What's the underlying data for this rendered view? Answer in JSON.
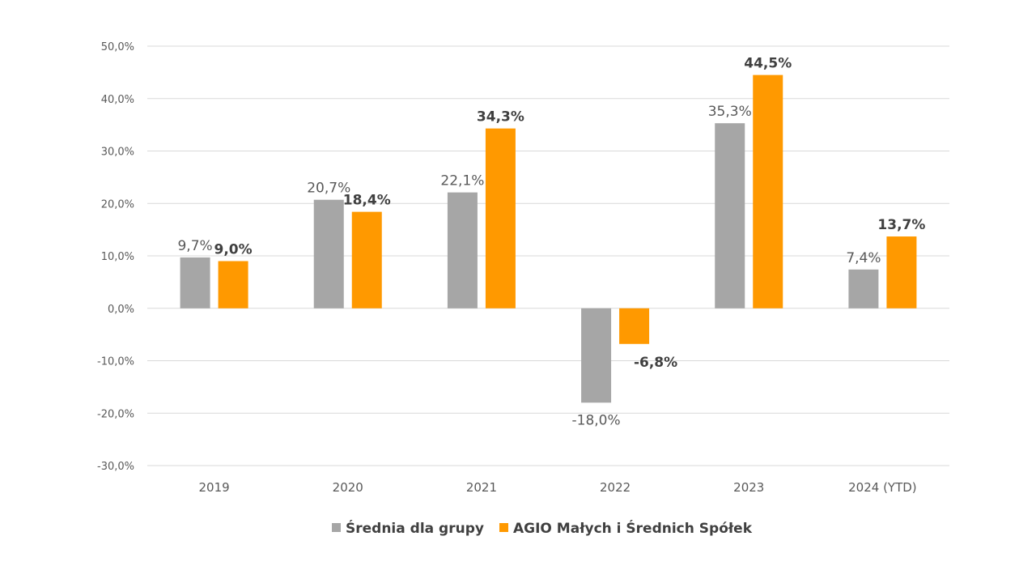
{
  "chart_data": {
    "type": "bar",
    "categories": [
      "2019",
      "2020",
      "2021",
      "2022",
      "2023",
      "2024 (YTD)"
    ],
    "series": [
      {
        "name": "Średnia dla grupy",
        "values": [
          9.7,
          20.7,
          22.1,
          -18.0,
          35.3,
          7.4
        ],
        "labels": [
          "9,7%",
          "20,7%",
          "22,1%",
          "-18,0%",
          "35,3%",
          "7,4%"
        ],
        "color": "#a6a6a6"
      },
      {
        "name": "AGIO Małych i Średnich Spółek",
        "values": [
          9.0,
          18.4,
          34.3,
          -6.8,
          44.5,
          13.7
        ],
        "labels": [
          "9,0%",
          "18,4%",
          "34,3%",
          "-6,8%",
          "44,5%",
          "13,7%"
        ],
        "color": "#ff9900"
      }
    ],
    "yticks": [
      50,
      40,
      30,
      20,
      10,
      0,
      -10,
      -20,
      -30
    ],
    "ytick_labels": [
      "50,0%",
      "40,0%",
      "30,0%",
      "20,0%",
      "10,0%",
      "0,0%",
      "-10,0%",
      "-20,0%",
      "-30,0%"
    ],
    "ylim": [
      -30,
      50
    ],
    "grid": true,
    "legend_position": "bottom-center"
  }
}
